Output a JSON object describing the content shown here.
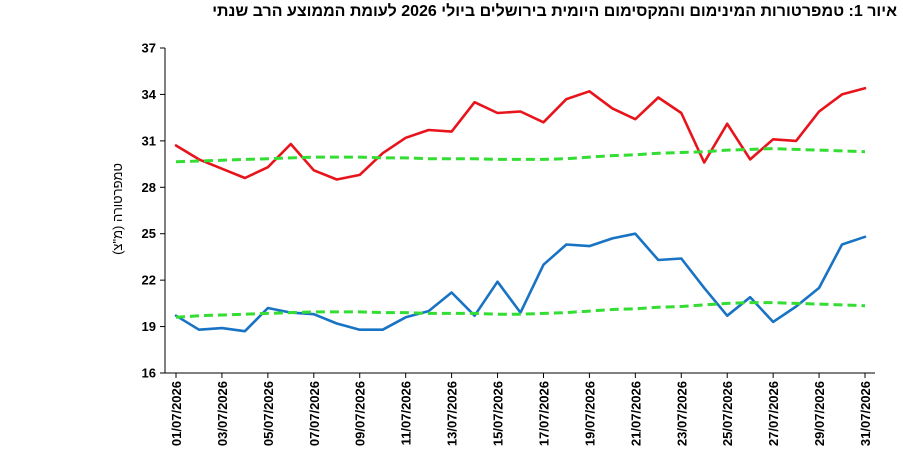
{
  "chart_data": {
    "type": "line",
    "title": "איור 1: טמפרטורות המינימום והמקסימום היומית בירושלים ביולי 2026 לעומת הממוצע הרב שנתי",
    "ylabel": "טמפרטורה (מ\"צ)",
    "xlabel": "",
    "ylim": [
      16,
      37
    ],
    "yticks": [
      16,
      19,
      22,
      25,
      28,
      31,
      34,
      37
    ],
    "grid": false,
    "legend": "none",
    "x": [
      "01/07/2026",
      "02/07/2026",
      "03/07/2026",
      "04/07/2026",
      "05/07/2026",
      "06/07/2026",
      "07/07/2026",
      "08/07/2026",
      "09/07/2026",
      "10/07/2026",
      "11/07/2026",
      "12/07/2026",
      "13/07/2026",
      "14/07/2026",
      "15/07/2026",
      "16/07/2026",
      "17/07/2026",
      "18/07/2026",
      "19/07/2026",
      "20/07/2026",
      "21/07/2026",
      "22/07/2026",
      "23/07/2026",
      "24/07/2026",
      "25/07/2026",
      "26/07/2026",
      "27/07/2026",
      "28/07/2026",
      "29/07/2026",
      "30/07/2026",
      "31/07/2026"
    ],
    "xtick_labels": [
      "01/07/2026",
      "03/07/2026",
      "05/07/2026",
      "07/07/2026",
      "09/07/2026",
      "11/07/2026",
      "13/07/2026",
      "15/07/2026",
      "17/07/2026",
      "19/07/2026",
      "21/07/2026",
      "23/07/2026",
      "25/07/2026",
      "27/07/2026",
      "29/07/2026",
      "31/07/2026"
    ],
    "series": [
      {
        "color": "#e8141c",
        "style": "solid",
        "values": [
          30.7,
          29.8,
          29.2,
          28.6,
          29.3,
          30.8,
          29.1,
          28.5,
          28.8,
          30.2,
          31.2,
          31.7,
          31.6,
          33.5,
          32.8,
          32.9,
          32.2,
          33.7,
          34.2,
          33.1,
          32.4,
          33.8,
          32.8,
          29.6,
          32.1,
          29.8,
          31.1,
          31.0,
          32.9,
          34.0,
          34.4
        ]
      },
      {
        "color": "#33dd33",
        "style": "dashed",
        "values": [
          29.65,
          29.7,
          29.75,
          29.8,
          29.85,
          29.9,
          29.95,
          29.95,
          29.95,
          29.9,
          29.9,
          29.85,
          29.85,
          29.85,
          29.8,
          29.8,
          29.8,
          29.85,
          29.95,
          30.05,
          30.1,
          30.2,
          30.25,
          30.3,
          30.4,
          30.45,
          30.5,
          30.45,
          30.4,
          30.35,
          30.3
        ]
      },
      {
        "color": "#1873c4",
        "style": "solid",
        "values": [
          19.7,
          18.8,
          18.9,
          18.7,
          20.2,
          19.9,
          19.8,
          19.2,
          18.8,
          18.8,
          19.6,
          20.0,
          21.2,
          19.7,
          21.9,
          19.9,
          23.0,
          24.3,
          24.2,
          24.7,
          25.0,
          23.3,
          23.4,
          21.5,
          19.7,
          20.9,
          19.3,
          20.3,
          21.5,
          24.3,
          24.8
        ]
      },
      {
        "color": "#33dd33",
        "style": "dashed",
        "values": [
          19.6,
          19.7,
          19.75,
          19.8,
          19.85,
          19.9,
          19.95,
          19.95,
          19.95,
          19.9,
          19.9,
          19.85,
          19.85,
          19.85,
          19.8,
          19.8,
          19.85,
          19.9,
          20.0,
          20.1,
          20.15,
          20.25,
          20.3,
          20.4,
          20.5,
          20.55,
          20.55,
          20.5,
          20.45,
          20.4,
          20.35
        ]
      }
    ]
  }
}
